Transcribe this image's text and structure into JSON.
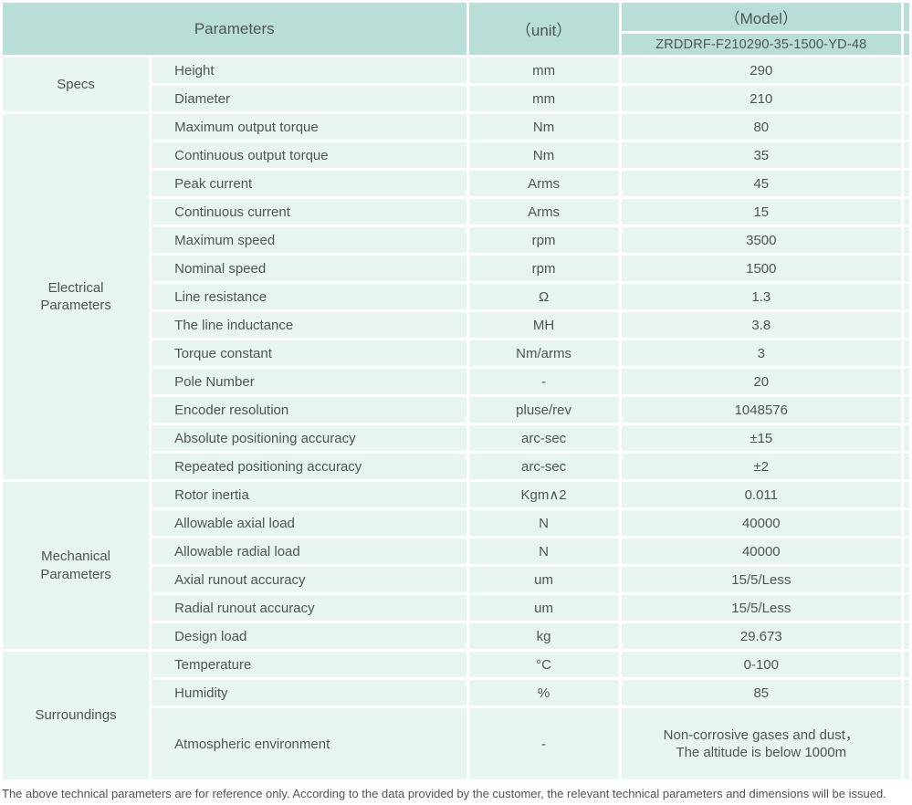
{
  "table": {
    "header": {
      "parameters": "Parameters",
      "unit": "（unit）",
      "model": "（Model）",
      "model_value": "ZRDDRF-F210290-35-1500-YD-48"
    },
    "sections": [
      {
        "group": "Specs",
        "rows": [
          {
            "name": "Height",
            "unit": "mm",
            "value": "290"
          },
          {
            "name": "Diameter",
            "unit": "mm",
            "value": "210"
          }
        ]
      },
      {
        "group": "Electrical Parameters",
        "rows": [
          {
            "name": "Maximum output torque",
            "unit": "Nm",
            "value": "80"
          },
          {
            "name": "Continuous output torque",
            "unit": "Nm",
            "value": "35"
          },
          {
            "name": "Peak current",
            "unit": "Arms",
            "value": "45"
          },
          {
            "name": "Continuous current",
            "unit": "Arms",
            "value": "15"
          },
          {
            "name": "Maximum speed",
            "unit": "rpm",
            "value": "3500"
          },
          {
            "name": "Nominal speed",
            "unit": "rpm",
            "value": "1500"
          },
          {
            "name": "Line resistance",
            "unit": "Ω",
            "value": "1.3"
          },
          {
            "name": "The line inductance",
            "unit": "MH",
            "value": "3.8"
          },
          {
            "name": "Torque constant",
            "unit": "Nm/arms",
            "value": "3"
          },
          {
            "name": "Pole Number",
            "unit": "-",
            "value": "20"
          },
          {
            "name": "Encoder resolution",
            "unit": "pluse/rev",
            "value": "1048576"
          },
          {
            "name": "Absolute positioning accuracy",
            "unit": "arc-sec",
            "value": "±15"
          },
          {
            "name": "Repeated positioning accuracy",
            "unit": "arc-sec",
            "value": "±2"
          }
        ]
      },
      {
        "group": "Mechanical Parameters",
        "rows": [
          {
            "name": "Rotor inertia",
            "unit": "Kgm∧2",
            "value": "0.011"
          },
          {
            "name": "Allowable axial load",
            "unit": "N",
            "value": "40000"
          },
          {
            "name": "Allowable radial load",
            "unit": "N",
            "value": "40000"
          },
          {
            "name": "Axial runout accuracy",
            "unit": "um",
            "value": "15/5/Less"
          },
          {
            "name": "Radial runout accuracy",
            "unit": "um",
            "value": "15/5/Less"
          },
          {
            "name": "Design load",
            "unit": "kg",
            "value": "29.673"
          }
        ]
      },
      {
        "group": "Surroundings",
        "rows": [
          {
            "name": "Temperature",
            "unit": "°C",
            "value": "0-100"
          },
          {
            "name": "Humidity",
            "unit": "%",
            "value": "85"
          },
          {
            "name": "Atmospheric environment",
            "unit": "-",
            "value": [
              "Non-corrosive gases and dust，",
              "The altitude is below 1000m"
            ],
            "tall": true
          }
        ]
      }
    ]
  },
  "footer": {
    "note": "The above technical parameters are for reference only. According to the data provided by the customer, the relevant technical parameters and dimensions will be issued."
  },
  "colors": {
    "header_bg": "#b9ded8",
    "row_bg": "#e7f4f1",
    "separator": "#ffffff",
    "text": "#4e5457"
  }
}
